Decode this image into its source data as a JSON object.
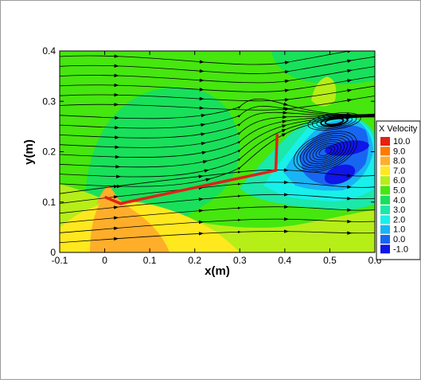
{
  "chart_data": {
    "type": "heatmap",
    "xlabel": "x(m)",
    "ylabel": "y(m)",
    "xlim": [
      -0.1,
      0.6
    ],
    "ylim": [
      0,
      0.4
    ],
    "xticks": [
      "-0.1",
      "0",
      "0.1",
      "0.2",
      "0.3",
      "0.4",
      "0.5",
      "0.6"
    ],
    "yticks": [
      "0",
      "0.1",
      "0.2",
      "0.3",
      "0.4"
    ],
    "xtick_values": [
      -0.1,
      0,
      0.1,
      0.2,
      0.3,
      0.4,
      0.5,
      0.6
    ],
    "ytick_values": [
      0,
      0.1,
      0.2,
      0.3,
      0.4
    ],
    "legend": {
      "title": "X Velocity",
      "placement": "right",
      "levels": [
        {
          "label": "10.0",
          "value": 10.0,
          "color": "#e82010"
        },
        {
          "label": "9.0",
          "value": 9.0,
          "color": "#ff7a00"
        },
        {
          "label": "8.0",
          "value": 8.0,
          "color": "#ffae2a"
        },
        {
          "label": "7.0",
          "value": 7.0,
          "color": "#ffe81e"
        },
        {
          "label": "6.0",
          "value": 6.0,
          "color": "#b6ee18"
        },
        {
          "label": "5.0",
          "value": 5.0,
          "color": "#46e60f"
        },
        {
          "label": "4.0",
          "value": 4.0,
          "color": "#18e05a"
        },
        {
          "label": "3.0",
          "value": 3.0,
          "color": "#1be8aa"
        },
        {
          "label": "2.0",
          "value": 2.0,
          "color": "#18f0ea"
        },
        {
          "label": "1.0",
          "value": 1.0,
          "color": "#19b4f5"
        },
        {
          "label": "0.0",
          "value": 0.0,
          "color": "#1766f1"
        },
        {
          "label": "-1.0",
          "value": -1.0,
          "color": "#1015e8"
        }
      ]
    },
    "plate": {
      "points": [
        [
          0.0,
          0.11
        ],
        [
          0.035,
          0.097
        ],
        [
          0.38,
          0.163
        ],
        [
          0.383,
          0.235
        ]
      ],
      "color": "#e0201a"
    },
    "vortices": [
      {
        "x": 0.51,
        "y": 0.26
      },
      {
        "x": 0.49,
        "y": 0.2
      }
    ],
    "grid": false
  }
}
